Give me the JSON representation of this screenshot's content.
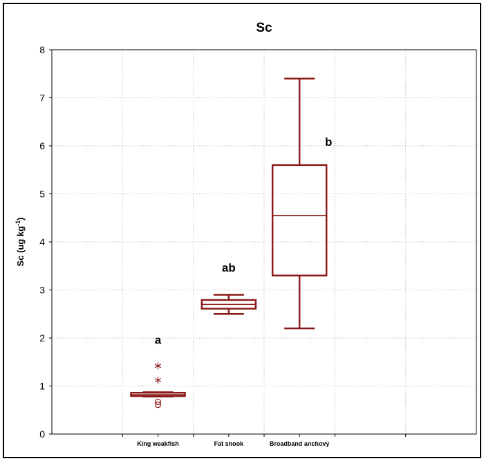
{
  "chart_data": {
    "type": "box",
    "title": "Sc",
    "ylabel": "Sc (ug kg",
    "ylabel_exponent": "-1",
    "ylabel_close": ")",
    "xlabel": "",
    "ylim": [
      0,
      8
    ],
    "y_ticks": [
      "0",
      "1",
      "2",
      "3",
      "4",
      "5",
      "6",
      "7",
      "8"
    ],
    "grid": true,
    "categories": [
      "King weakfish",
      "Fat snook",
      "Broadband anchovy"
    ],
    "boxes": [
      {
        "category": "King weakfish",
        "whisker_low": 0.78,
        "q1": 0.79,
        "median": 0.82,
        "q3": 0.86,
        "whisker_high": 0.87,
        "outliers": [
          0.61,
          0.67
        ],
        "extremes": [
          1.12,
          1.42
        ],
        "group_label": "a",
        "group_label_y": 1.88
      },
      {
        "category": "Fat snook",
        "whisker_low": 2.5,
        "q1": 2.61,
        "median": 2.7,
        "q3": 2.79,
        "whisker_high": 2.9,
        "outliers": [],
        "extremes": [],
        "group_label": "ab",
        "group_label_y": 3.38
      },
      {
        "category": "Broadband anchovy",
        "whisker_low": 2.2,
        "q1": 3.3,
        "median": 4.55,
        "q3": 5.6,
        "whisker_high": 7.4,
        "outliers": [],
        "extremes": [],
        "group_label": "b",
        "group_label_y": 6.0
      }
    ],
    "colors": {
      "box": "#8b1a1a",
      "grid": "#b9b9b9",
      "axis": "#000000"
    }
  }
}
